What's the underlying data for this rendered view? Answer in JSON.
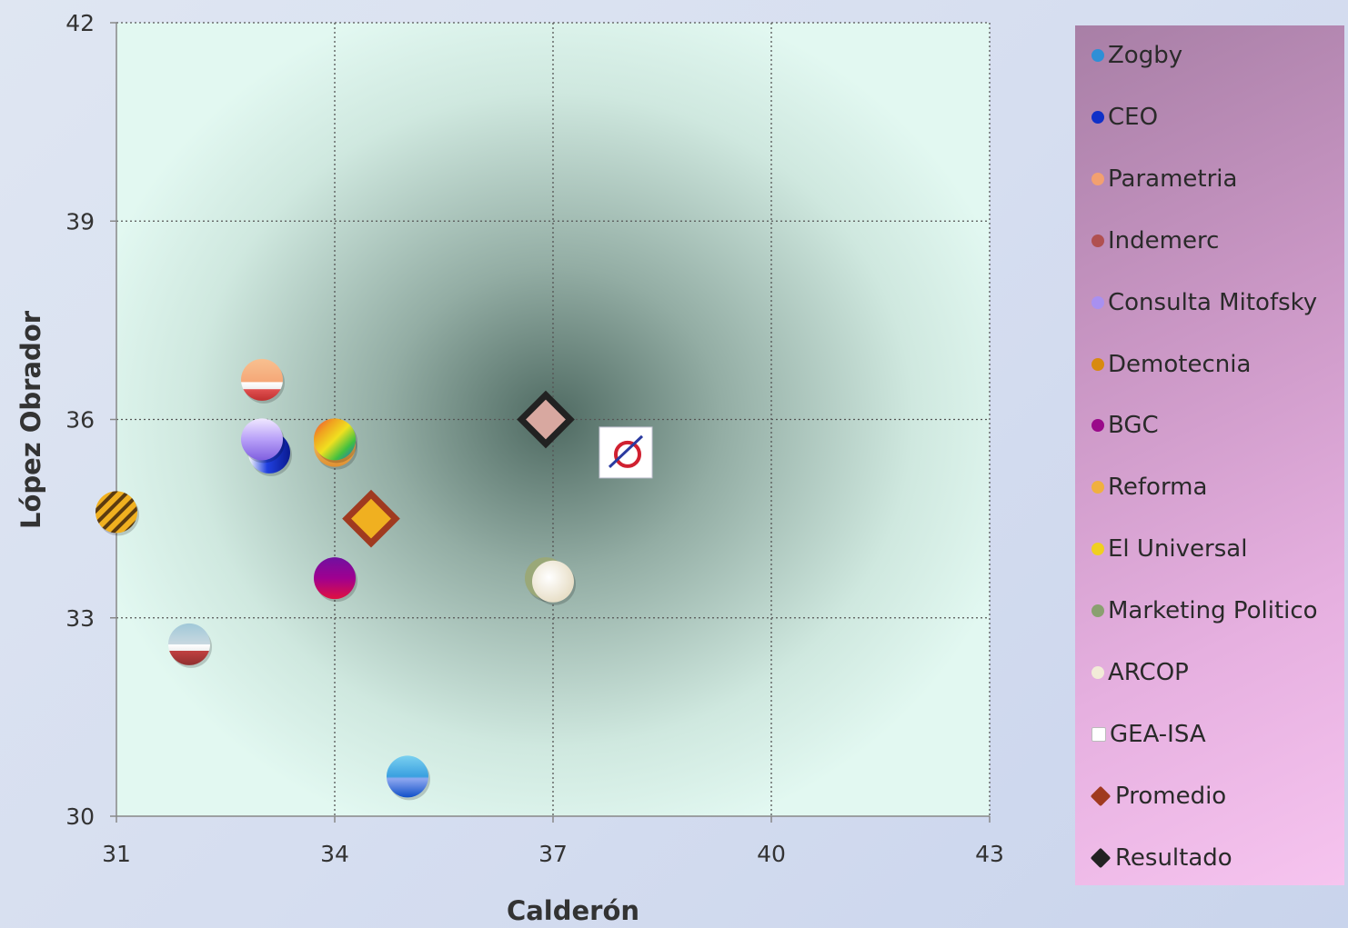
{
  "chart_data": {
    "type": "scatter",
    "xlabel": "Calderón",
    "ylabel": "López Obrador",
    "xlim": [
      31,
      43
    ],
    "ylim": [
      30,
      42
    ],
    "xticks": [
      31,
      34,
      37,
      40,
      43
    ],
    "yticks": [
      30,
      33,
      36,
      39,
      42
    ],
    "grid": true,
    "legend_position": "right",
    "series": [
      {
        "name": "Zogby",
        "x": 35.0,
        "y": 30.6,
        "color": "#2e8fd6",
        "marker": "circle"
      },
      {
        "name": "CEO",
        "x": 33.1,
        "y": 35.5,
        "color": "#1030c8",
        "marker": "circle"
      },
      {
        "name": "Parametria",
        "x": 33.0,
        "y": 36.6,
        "color": "#f2a070",
        "marker": "circle"
      },
      {
        "name": "Indemerc",
        "x": 32.0,
        "y": 32.6,
        "color": "#b05050",
        "marker": "circle"
      },
      {
        "name": "Consulta Mitofsky",
        "x": 33.0,
        "y": 35.7,
        "color": "#a890f0",
        "marker": "circle"
      },
      {
        "name": "Demotecnia",
        "x": 31.0,
        "y": 34.6,
        "color": "#d88a10",
        "marker": "circle"
      },
      {
        "name": "BGC",
        "x": 34.0,
        "y": 33.6,
        "color": "#9a0a8a",
        "marker": "circle"
      },
      {
        "name": "Reforma",
        "x": 34.0,
        "y": 35.6,
        "color": "#f0b040",
        "marker": "circle"
      },
      {
        "name": "El Universal",
        "x": 34.0,
        "y": 35.7,
        "color": "#f0d020",
        "marker": "circle"
      },
      {
        "name": "Marketing Politico",
        "x": 36.9,
        "y": 33.6,
        "color": "#8aa070",
        "marker": "circle"
      },
      {
        "name": "ARCOP",
        "x": 37.0,
        "y": 33.55,
        "color": "#f2ecd8",
        "marker": "circle"
      },
      {
        "name": "GEA-ISA",
        "x": 38.0,
        "y": 35.5,
        "color": "#ffffff",
        "marker": "image"
      },
      {
        "name": "Promedio",
        "x": 34.5,
        "y": 34.5,
        "color": "#a03a20",
        "marker": "diamond"
      },
      {
        "name": "Resultado",
        "x": 36.9,
        "y": 36.0,
        "color": "#222222",
        "marker": "diamond"
      }
    ]
  }
}
